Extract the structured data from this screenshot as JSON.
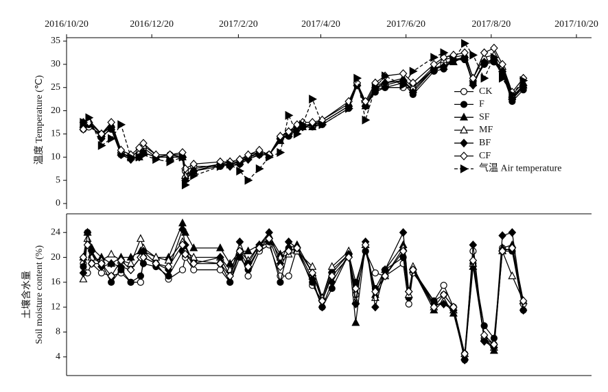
{
  "chart_data": [
    {
      "type": "line",
      "ylabel": "温度 Temperature (℃)",
      "xlim": [
        "2016/10/20",
        "2017/10/20"
      ],
      "xticks": [
        "2016/10/20",
        "2016/12/20",
        "2017/2/20",
        "2017/4/20",
        "2017/6/20",
        "2017/8/20",
        "2017/10/20"
      ],
      "ylim": [
        0,
        35
      ],
      "yticks": [
        0,
        5,
        10,
        15,
        20,
        25,
        30,
        35
      ],
      "legend": "center right",
      "x": [
        "2016/11/1",
        "2016/11/5",
        "2016/11/14",
        "2016/11/21",
        "2016/11/28",
        "2016/12/5",
        "2016/12/11",
        "2016/12/14",
        "2016/12/23",
        "2017/1/2",
        "2017/1/11",
        "2017/1/13",
        "2017/1/19",
        "2017/2/7",
        "2017/2/14",
        "2017/2/21",
        "2017/2/27",
        "2017/3/7",
        "2017/3/14",
        "2017/3/22",
        "2017/3/28",
        "2017/4/3",
        "2017/4/7",
        "2017/4/14",
        "2017/4/21",
        "2017/5/10",
        "2017/5/16",
        "2017/5/22",
        "2017/5/29",
        "2017/6/5",
        "2017/6/18",
        "2017/6/25",
        "2017/7/10",
        "2017/7/17",
        "2017/7/24",
        "2017/8/1",
        "2017/8/7",
        "2017/8/15",
        "2017/8/22",
        "2017/8/28",
        "2017/9/4",
        "2017/9/12"
      ],
      "series": [
        {
          "name": "CK",
          "color": "#000000",
          "marker": "circle",
          "filled": false,
          "dashed": false,
          "values": [
            16,
            16.5,
            15,
            16.5,
            11,
            10,
            11.5,
            12,
            10,
            10.5,
            10,
            7,
            8,
            8,
            8.5,
            9,
            10,
            11,
            10.5,
            14,
            15,
            16,
            16.5,
            17,
            17.5,
            21,
            25.5,
            21,
            24.5,
            25,
            25,
            25,
            29,
            30,
            31,
            31.5,
            26,
            30,
            31,
            28,
            22.5,
            25
          ]
        },
        {
          "name": "F",
          "color": "#000000",
          "marker": "circle",
          "filled": true,
          "dashed": false,
          "values": [
            16.5,
            17,
            14.5,
            16,
            10.5,
            10,
            10,
            11,
            10,
            10,
            10,
            5.5,
            7,
            8,
            8.5,
            8.5,
            10,
            10.5,
            10.5,
            14,
            14.5,
            16,
            16.5,
            16.5,
            17,
            20.5,
            25.5,
            21,
            24,
            25,
            26,
            23.5,
            28.5,
            29,
            31,
            31,
            26,
            30,
            30.5,
            28,
            22,
            24.5
          ]
        },
        {
          "name": "SF",
          "color": "#000000",
          "marker": "triangle",
          "filled": true,
          "dashed": false,
          "values": [
            17,
            18,
            15,
            16.5,
            11,
            10,
            10,
            11,
            10,
            10,
            10,
            6,
            7,
            8.5,
            8.5,
            9,
            10,
            11,
            10.5,
            13.5,
            15,
            16.5,
            16.5,
            16.5,
            17.5,
            21,
            26,
            21,
            25,
            25.5,
            26.5,
            24.5,
            29,
            29.5,
            30.5,
            31.5,
            26,
            30.5,
            31,
            29,
            23,
            25.5
          ]
        },
        {
          "name": "MF",
          "color": "#000000",
          "marker": "triangle",
          "filled": false,
          "dashed": false,
          "values": [
            16.5,
            17.5,
            15,
            17,
            11.5,
            10.5,
            11,
            12.5,
            10.5,
            10.5,
            10.5,
            6,
            7.5,
            8.5,
            9,
            9,
            10.5,
            11,
            10.5,
            14.5,
            15.5,
            16.5,
            17,
            17,
            18,
            21.5,
            26,
            21.5,
            25.5,
            26,
            27,
            25,
            29.5,
            31,
            31.5,
            32,
            27,
            31.5,
            32,
            29.5,
            23.5,
            26
          ]
        },
        {
          "name": "BF",
          "color": "#000000",
          "marker": "diamond",
          "filled": true,
          "dashed": false,
          "values": [
            17.5,
            17.5,
            14,
            16.5,
            10.5,
            9.5,
            10,
            11,
            10,
            10,
            10,
            5,
            7,
            8.5,
            8,
            8.5,
            9.5,
            10.5,
            10.5,
            14,
            15,
            16.5,
            16.5,
            17,
            17.5,
            21,
            25.5,
            21,
            25,
            26,
            26.5,
            24,
            29,
            29.5,
            31,
            31.5,
            25.5,
            30.5,
            31,
            28.5,
            22.5,
            25.5
          ]
        },
        {
          "name": "CF",
          "color": "#000000",
          "marker": "diamond",
          "filled": false,
          "dashed": false,
          "values": [
            16,
            17.5,
            15,
            17.5,
            11.5,
            10.5,
            12,
            13,
            10.5,
            10.5,
            11,
            7.5,
            8.5,
            9,
            9,
            9.5,
            10.5,
            11.5,
            10.5,
            14.5,
            15.5,
            17,
            17.5,
            17.5,
            18,
            22,
            26,
            22,
            26,
            27.5,
            28,
            26,
            30,
            31.5,
            32,
            32.5,
            27,
            32.5,
            33.5,
            30,
            24,
            27
          ]
        },
        {
          "name": "气温 Air temperature",
          "color": "#000000",
          "marker": "arrow",
          "filled": true,
          "dashed": true,
          "values": [
            17.5,
            18.5,
            12.5,
            14,
            17,
            10,
            10,
            10.5,
            9.5,
            9,
            10,
            4,
            6,
            8,
            8.5,
            7,
            5,
            7.5,
            10,
            11,
            19,
            15,
            17,
            22.5,
            17,
            20.5,
            27,
            18,
            25,
            27.5,
            25.5,
            28.5,
            31.5,
            32.5,
            31,
            34.5,
            32,
            27,
            31.5,
            27,
            23.5,
            26.5
          ]
        }
      ]
    },
    {
      "type": "line",
      "ylabel": [
        "土壤含水量",
        "Soil moisture content (%)"
      ],
      "xlim": [
        "2016/10/20",
        "2017/10/20"
      ],
      "ylim": [
        1,
        27
      ],
      "yticks": [
        4,
        8,
        12,
        16,
        20,
        24
      ],
      "x": [
        "2016/11/1",
        "2016/11/4",
        "2016/11/7",
        "2016/11/14",
        "2016/11/21",
        "2016/11/28",
        "2016/12/5",
        "2016/12/12",
        "2016/12/14",
        "2016/12/23",
        "2017/1/1",
        "2017/1/11",
        "2017/1/13",
        "2017/1/19",
        "2017/2/7",
        "2017/2/14",
        "2017/2/21",
        "2017/2/27",
        "2017/3/7",
        "2017/3/14",
        "2017/3/22",
        "2017/3/28",
        "2017/4/3",
        "2017/4/14",
        "2017/4/21",
        "2017/4/28",
        "2017/5/10",
        "2017/5/15",
        "2017/5/22",
        "2017/5/29",
        "2017/6/5",
        "2017/6/18",
        "2017/6/22",
        "2017/6/25",
        "2017/7/10",
        "2017/7/17",
        "2017/7/24",
        "2017/8/1",
        "2017/8/7",
        "2017/8/15",
        "2017/8/22",
        "2017/8/28",
        "2017/9/4",
        "2017/9/12"
      ],
      "series": [
        {
          "name": "CK",
          "color": "#000000",
          "marker": "circle",
          "filled": false,
          "dashed": false,
          "values": [
            19,
            17.5,
            19,
            17.5,
            17,
            17.5,
            16,
            16,
            20,
            19,
            16.5,
            18,
            20,
            18,
            18,
            16,
            21,
            17,
            21,
            22,
            17,
            17,
            21.5,
            15.5,
            13,
            17.5,
            20.5,
            14,
            21,
            17.5,
            17,
            19,
            12.5,
            17.5,
            13,
            15.5,
            12,
            4.5,
            21,
            7,
            6,
            21.5,
            21,
            12.5
          ]
        },
        {
          "name": "F",
          "color": "#000000",
          "marker": "circle",
          "filled": true,
          "dashed": false,
          "values": [
            18.5,
            24,
            20,
            19,
            16,
            18,
            16,
            17,
            19,
            18.5,
            17,
            21,
            20.5,
            19.5,
            19,
            16,
            20,
            18,
            21.5,
            22.5,
            16,
            21.5,
            21,
            16,
            12,
            15,
            20.5,
            16,
            21,
            15,
            18,
            20,
            13.5,
            18,
            13,
            14,
            12,
            3.5,
            19,
            9,
            7,
            21,
            21,
            11.5
          ]
        },
        {
          "name": "SF",
          "color": "#000000",
          "marker": "triangle",
          "filled": true,
          "dashed": false,
          "values": [
            20,
            24,
            21.5,
            20,
            19,
            20,
            20,
            21,
            21,
            20,
            20,
            25.5,
            24,
            21.5,
            21.5,
            19,
            21,
            21,
            22,
            23.5,
            20.5,
            21.5,
            22,
            17.5,
            13.5,
            18,
            20.5,
            9.5,
            22,
            14,
            18,
            22,
            14,
            18,
            11.5,
            13,
            11,
            4,
            18.5,
            7,
            5,
            21.5,
            22,
            13
          ]
        },
        {
          "name": "MF",
          "color": "#000000",
          "marker": "triangle",
          "filled": false,
          "dashed": false,
          "values": [
            16.5,
            23,
            20,
            19.5,
            20.5,
            19.5,
            19,
            23,
            21.5,
            20,
            19.5,
            22.5,
            21,
            20,
            20,
            18,
            21,
            19.5,
            22,
            23,
            20,
            20.5,
            21,
            18.5,
            13.5,
            18.5,
            21,
            13,
            22,
            13.5,
            17,
            21.5,
            14,
            18.5,
            12,
            13,
            11.5,
            4.5,
            19,
            7,
            5.5,
            21,
            17,
            13
          ]
        },
        {
          "name": "BF",
          "color": "#000000",
          "marker": "diamond",
          "filled": true,
          "dashed": false,
          "values": [
            17.5,
            24,
            21,
            18.5,
            19,
            18.5,
            18,
            20,
            21,
            19,
            18,
            24.5,
            22,
            19,
            20,
            17,
            22.5,
            19,
            22,
            24,
            19,
            22.5,
            21.5,
            16.5,
            12,
            16,
            20.5,
            12.5,
            22.5,
            12,
            18,
            24,
            14.5,
            18,
            12.5,
            12.5,
            11.5,
            3.5,
            22,
            6.5,
            5.5,
            23.5,
            24,
            11.5
          ]
        },
        {
          "name": "CF",
          "color": "#000000",
          "marker": "diamond",
          "filled": false,
          "dashed": false,
          "values": [
            20,
            22,
            19,
            19,
            17,
            19.5,
            18,
            20,
            20,
            19,
            18.5,
            22,
            20.5,
            19,
            19,
            17,
            21,
            18.5,
            21.5,
            23,
            18.5,
            21,
            21.5,
            17.5,
            13,
            17,
            20,
            15,
            22,
            14.5,
            17,
            21,
            14.5,
            18,
            12,
            14,
            12,
            4.5,
            19.5,
            7.5,
            6,
            21,
            21.5,
            13
          ]
        }
      ]
    }
  ]
}
